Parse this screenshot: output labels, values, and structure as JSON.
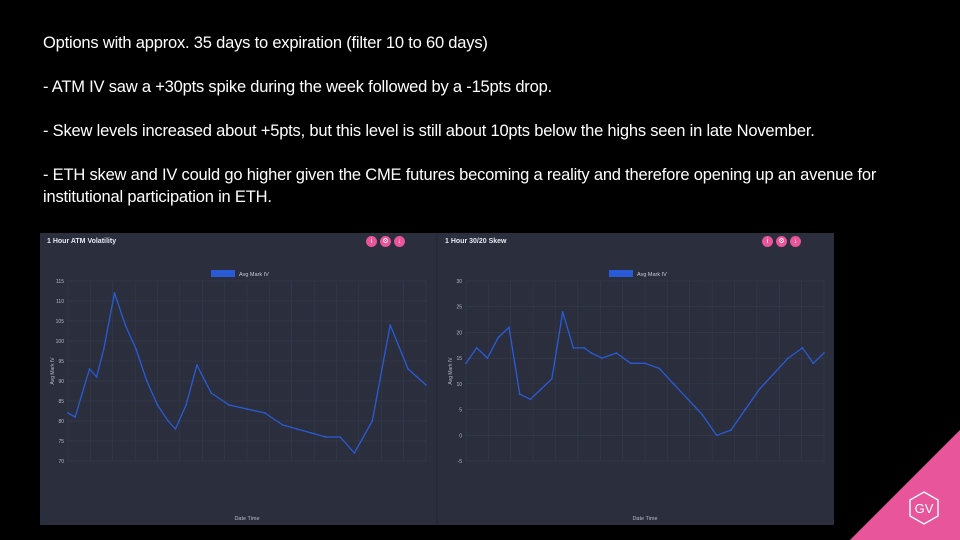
{
  "slide": {
    "lines": [
      "Options with approx. 35 days to expiration (filter 10 to 60 days)",
      "- ATM IV saw a +30pts spike during the week followed by a  -15pts drop.",
      "- Skew levels increased about +5pts, but this level is still about 10pts below the highs seen in late November.",
      "- ETH skew and IV could go higher given the CME futures becoming a reality and therefore opening up an avenue for institutional participation in ETH."
    ]
  },
  "buttons": {
    "icons": [
      "info-icon",
      "settings-icon",
      "download-icon"
    ],
    "glyphs": [
      "i",
      "⚙",
      "↓"
    ]
  },
  "logo": {
    "text": "GV",
    "color": "#e8559a"
  },
  "colors": {
    "line": "#2a5bd7",
    "panel": "#2a2e3d",
    "grid": "#3b4152",
    "accent": "#e8559a"
  },
  "chart_data": [
    {
      "type": "line",
      "title": "1 Hour ATM Volatility",
      "legend": "Avg Mark IV",
      "legend_position": "top",
      "xlabel": "Date Time",
      "ylabel": "Avg Mark IV",
      "ylim": [
        70,
        115
      ],
      "yticks": [
        70,
        75,
        80,
        85,
        90,
        95,
        100,
        105,
        110,
        115
      ],
      "grid": true,
      "series": [
        {
          "name": "Avg Mark IV",
          "x": [
            0,
            2,
            4,
            6,
            8,
            10,
            13,
            16,
            19,
            22,
            25,
            28,
            30,
            33,
            36,
            40,
            45,
            50,
            55,
            60,
            64,
            68,
            72,
            76,
            80,
            85,
            90,
            95,
            100
          ],
          "values": [
            82,
            81,
            87,
            93,
            91,
            98,
            112,
            104,
            98,
            90,
            84,
            80,
            78,
            84,
            94,
            87,
            84,
            83,
            82,
            79,
            78,
            77,
            76,
            76,
            72,
            80,
            104,
            93,
            89
          ]
        }
      ]
    },
    {
      "type": "line",
      "title": "1 Hour 30/20 Skew",
      "legend": "Avg Mark IV",
      "legend_position": "top",
      "xlabel": "Date Time",
      "ylabel": "Avg Mark IV",
      "ylim": [
        -5,
        30
      ],
      "yticks": [
        -5,
        0,
        5,
        10,
        15,
        20,
        25,
        30
      ],
      "grid": true,
      "series": [
        {
          "name": "Avg Mark IV",
          "x": [
            0,
            3,
            6,
            9,
            12,
            15,
            18,
            21,
            24,
            27,
            30,
            33,
            35,
            38,
            42,
            46,
            50,
            54,
            58,
            62,
            66,
            70,
            74,
            78,
            82,
            86,
            90,
            94,
            97,
            100
          ],
          "values": [
            14,
            17,
            15,
            19,
            21,
            8,
            7,
            9,
            11,
            24,
            17,
            17,
            16,
            15,
            16,
            14,
            14,
            13,
            10,
            7,
            4,
            0,
            1,
            5,
            9,
            12,
            15,
            17,
            14,
            16
          ]
        }
      ]
    }
  ]
}
